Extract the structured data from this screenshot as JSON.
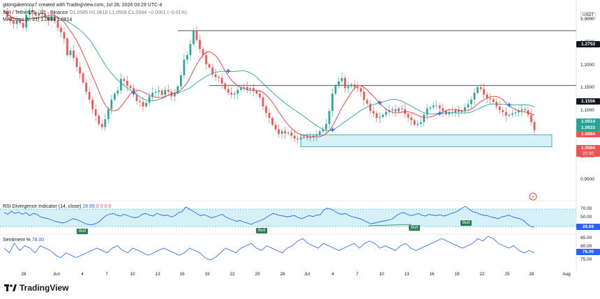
{
  "header": {
    "attribution": "gitongakennox7 created with TradingView.com, Jul 28, 2026 03:29 UTC-4",
    "symbol_line": "SUI / TetherUS · 1D · Binance",
    "ohlc": "O1.0585  H1.0610  L1.0558  C1.0584  −0.0001 (−0.01%)",
    "ma_line": "MA Cross (9, 21)  1.0884  1.0914"
  },
  "currency_label": "USDT",
  "levels": {
    "upper_resistance": "1.2753",
    "mid_resistance": "1.1556",
    "ma_fast_value": "1.0914",
    "ma_slow_value": "1.0933",
    "ma_fast2_value": "1.0884",
    "last_price": "1.0584",
    "countdown": "20:30"
  },
  "rsi": {
    "title": "RSI Divergence Indicator (14, close)",
    "value": "28.69",
    "extras": "0  0  0  0",
    "ticks": [
      "70.00",
      "50.00"
    ],
    "bull_label": "Bull"
  },
  "sentiment": {
    "title": "Sentiment %",
    "value": "78.00",
    "ticks": [
      "85.00",
      "80.00",
      "75.00"
    ]
  },
  "logo_text": "TradingView",
  "colors": {
    "up": "#26a69a",
    "down": "#ef5350",
    "ma_fast": "#e53935",
    "ma_slow": "#26a69a",
    "rsi_line": "#2962ff",
    "level_line": "#131722",
    "zone_fill": "#d6f0f8",
    "zone_border": "#0097a7",
    "bull": "#2e7d52"
  },
  "chart_data": {
    "type": "candlestick",
    "ylim": [
      0.95,
      1.33
    ],
    "y_ticks": [
      "1.3000",
      "1.2500",
      "1.2000",
      "1.1500",
      "1.1000",
      "1.0500",
      "1.0000",
      "0.9500"
    ],
    "x_ticks": [
      "28",
      "Jun",
      "4",
      "7",
      "10",
      "13",
      "16",
      "19",
      "22",
      "25",
      "28",
      "Jul",
      "4",
      "7",
      "10",
      "13",
      "16",
      "19",
      "22",
      "25",
      "28",
      "Aug"
    ],
    "horizontal_levels": [
      1.2753,
      1.1556
    ],
    "support_zone": [
      1.022,
      1.048
    ],
    "close": [
      1.318,
      1.305,
      1.296,
      1.29,
      1.298,
      1.292,
      1.282,
      1.31,
      1.32,
      1.316,
      1.308,
      1.314,
      1.312,
      1.305,
      1.298,
      1.308,
      1.296,
      1.282,
      1.272,
      1.258,
      1.222,
      1.232,
      1.216,
      1.196,
      1.182,
      1.162,
      1.142,
      1.125,
      1.104,
      1.09,
      1.072,
      1.065,
      1.082,
      1.104,
      1.125,
      1.138,
      1.145,
      1.17,
      1.166,
      1.155,
      1.15,
      1.136,
      1.122,
      1.12,
      1.11,
      1.118,
      1.132,
      1.14,
      1.142,
      1.145,
      1.135,
      1.146,
      1.142,
      1.132,
      1.138,
      1.154,
      1.178,
      1.212,
      1.222,
      1.246,
      1.276,
      1.255,
      1.235,
      1.222,
      1.202,
      1.195,
      1.18,
      1.174,
      1.172,
      1.16,
      1.148,
      1.14,
      1.136,
      1.138,
      1.146,
      1.15,
      1.152,
      1.147,
      1.15,
      1.144,
      1.138,
      1.13,
      1.11,
      1.096,
      1.085,
      1.07,
      1.06,
      1.05,
      1.056,
      1.051,
      1.053,
      1.046,
      1.04,
      1.038,
      1.042,
      1.044,
      1.041,
      1.043,
      1.046,
      1.049,
      1.056,
      1.06,
      1.072,
      1.1,
      1.138,
      1.155,
      1.165,
      1.172,
      1.15,
      1.154,
      1.158,
      1.152,
      1.15,
      1.142,
      1.124,
      1.116,
      1.1,
      1.095,
      1.085,
      1.087,
      1.092,
      1.098,
      1.102,
      1.104,
      1.099,
      1.106,
      1.104,
      1.094,
      1.086,
      1.08,
      1.07,
      1.072,
      1.076,
      1.092,
      1.106,
      1.108,
      1.112,
      1.112,
      1.106,
      1.1,
      1.093,
      1.098,
      1.097,
      1.102,
      1.098,
      1.1,
      1.108,
      1.115,
      1.125,
      1.14,
      1.152,
      1.148,
      1.136,
      1.128,
      1.126,
      1.12,
      1.11,
      1.102,
      1.098,
      1.09,
      1.092,
      1.095,
      1.097,
      1.101,
      1.104,
      1.102,
      1.092,
      1.076,
      1.058
    ],
    "rsi": [
      62,
      58,
      65,
      60,
      63,
      58,
      62,
      55,
      60,
      58,
      52,
      50,
      48,
      45,
      42,
      40,
      38,
      40,
      44,
      48,
      46,
      42,
      38,
      35,
      34,
      36,
      40,
      48,
      55,
      58,
      60,
      56,
      54,
      58,
      55,
      52,
      50,
      52,
      58,
      60,
      56,
      54,
      60,
      57,
      55,
      56,
      52,
      55,
      62,
      64,
      75,
      70,
      65,
      60,
      55,
      57,
      54,
      50,
      52,
      55,
      58,
      52,
      48,
      45,
      42,
      44,
      40,
      38,
      35,
      39,
      42,
      45,
      50,
      55,
      60,
      58,
      55,
      54,
      52,
      54,
      55,
      50,
      48,
      52,
      55,
      53,
      56,
      57,
      68,
      72,
      70,
      65,
      60,
      58,
      60,
      55,
      52,
      50,
      48,
      44,
      40,
      36,
      38,
      40,
      42,
      43,
      45,
      48,
      55,
      60,
      62,
      58,
      55,
      57,
      60,
      56,
      54,
      58,
      56,
      55,
      57,
      54,
      56,
      60,
      62,
      66,
      72,
      76,
      70,
      64,
      62,
      58,
      56,
      55,
      52,
      50,
      48,
      52,
      54,
      56,
      52,
      50,
      48,
      44,
      36,
      30,
      28.69
    ],
    "sentiment": [
      80,
      78,
      82,
      79,
      81,
      80,
      78,
      81,
      80,
      79,
      77,
      76,
      78,
      77,
      76,
      77,
      78,
      79,
      80,
      79,
      78,
      80,
      81,
      79,
      78,
      80,
      79,
      78,
      77,
      78,
      79,
      80,
      79,
      78,
      77,
      78,
      80,
      79,
      78,
      76,
      75,
      76,
      78,
      80,
      79,
      78,
      80,
      81,
      82,
      80,
      79,
      81,
      80,
      79,
      78,
      80,
      81,
      83,
      84,
      82,
      81,
      80,
      82,
      81,
      80,
      79,
      80,
      81,
      82,
      80,
      82,
      83,
      82,
      80,
      81,
      80,
      79,
      81,
      82,
      80,
      79,
      80,
      81,
      82,
      83,
      84,
      83,
      82,
      81,
      80,
      81,
      82,
      84,
      83,
      85,
      84,
      82,
      81,
      80,
      81,
      79,
      78,
      79,
      78
    ]
  }
}
